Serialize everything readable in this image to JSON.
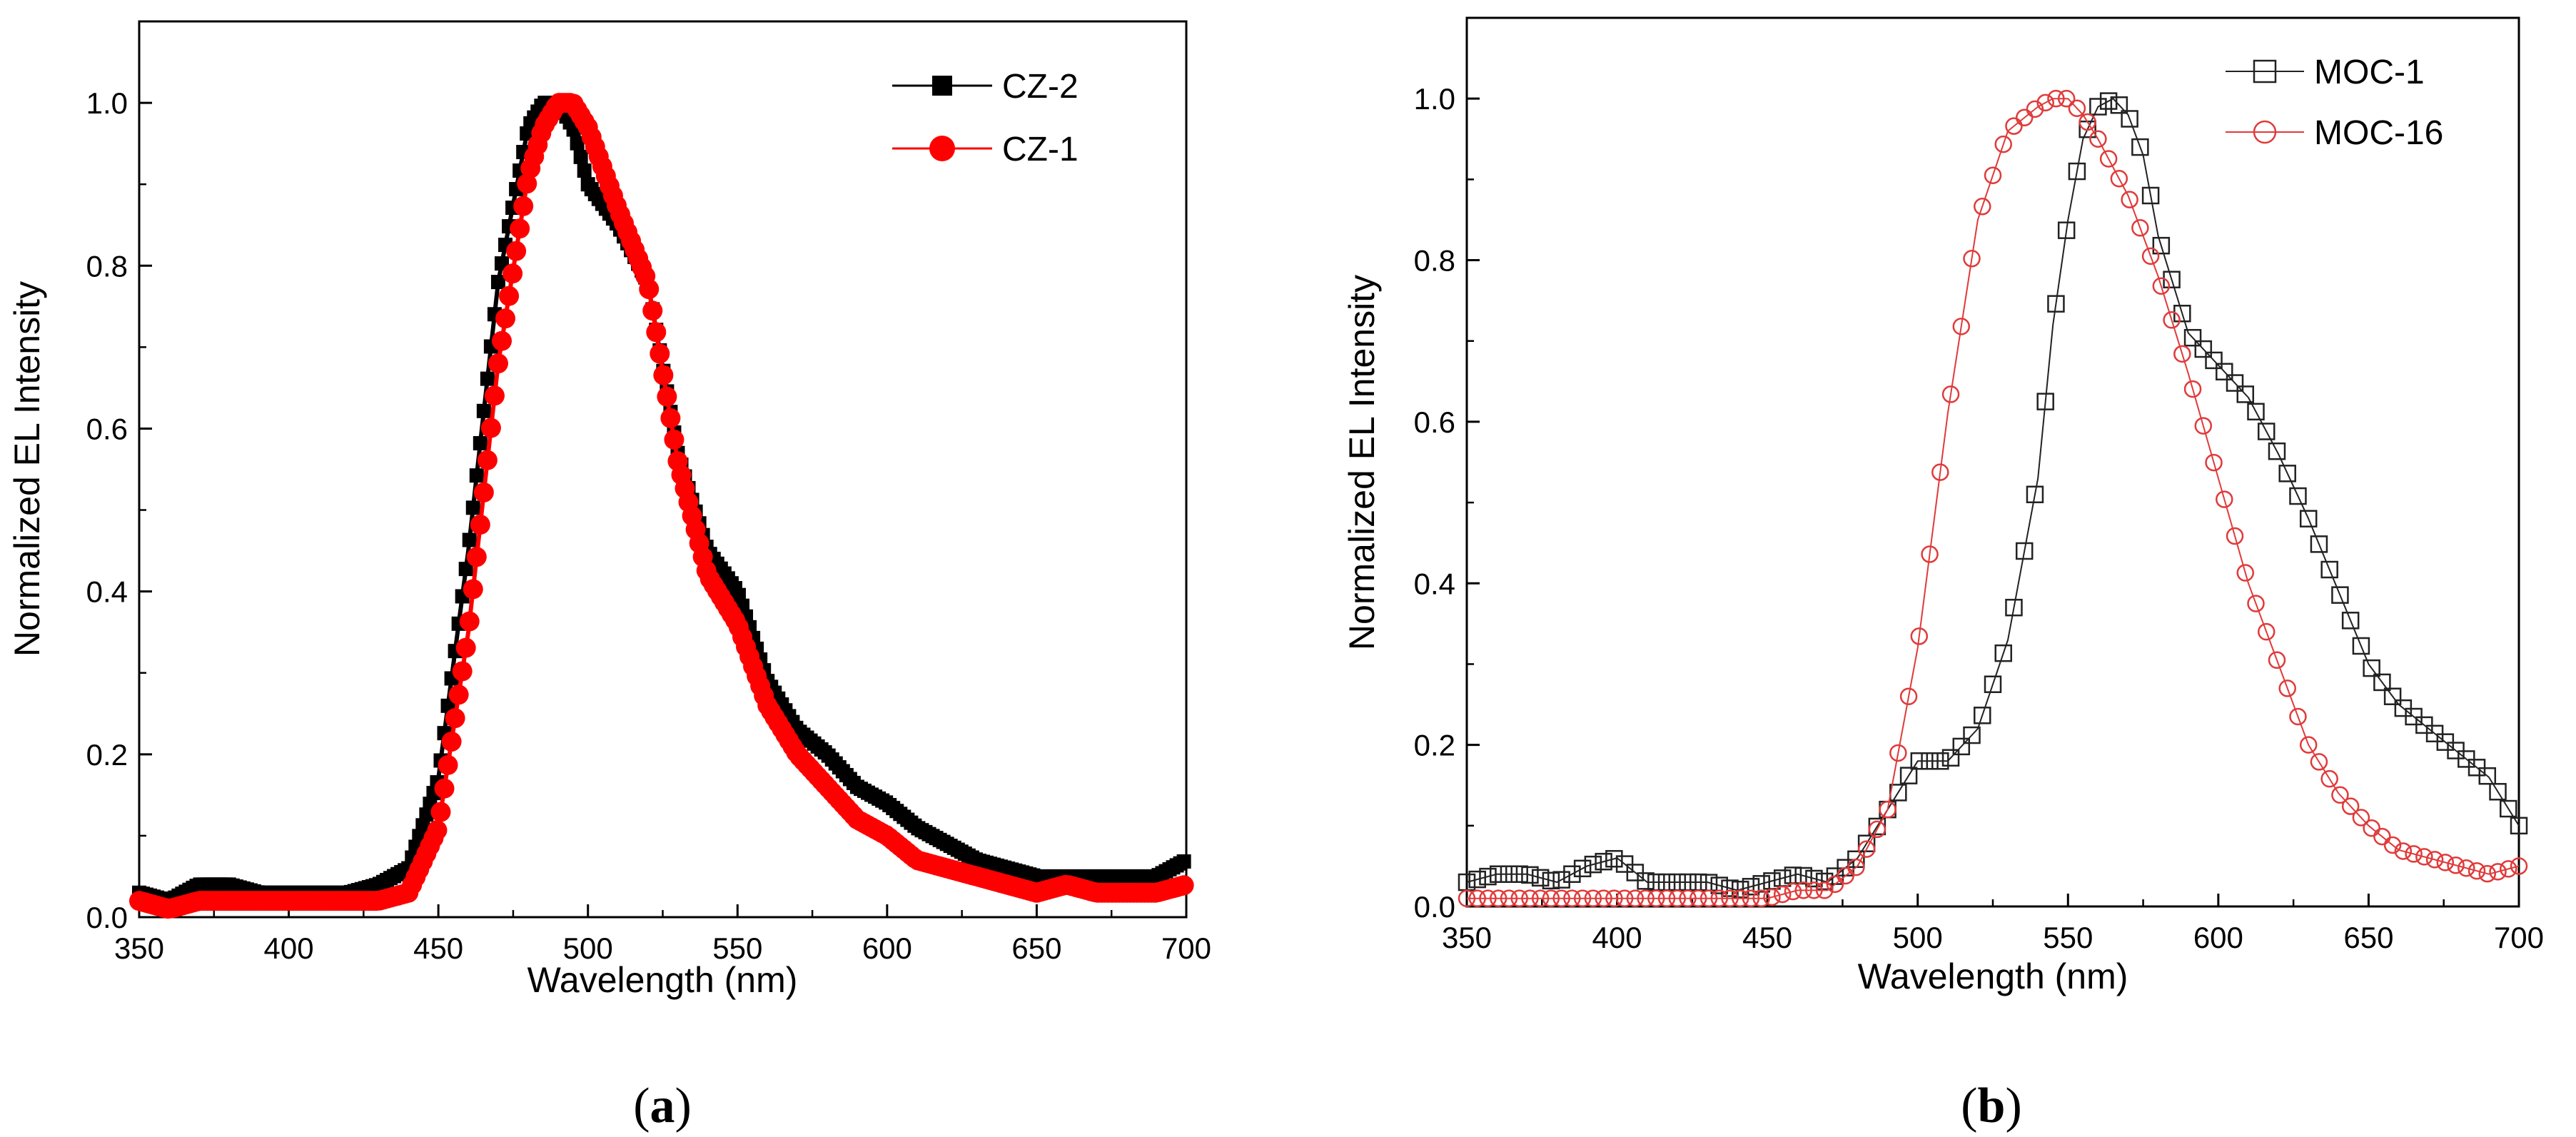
{
  "colors": {
    "black": "#000000",
    "red": "#ff0000",
    "open_red": "#e03a3a",
    "open_black": "#222222"
  },
  "chart_data": [
    {
      "type": "line",
      "panel_label": {
        "open": "(",
        "letter": "a",
        "close": ")"
      },
      "title": "",
      "xlabel": "Wavelength (nm)",
      "ylabel": "Normalized EL Intensity",
      "xlim": [
        350,
        700
      ],
      "ylim": [
        0.0,
        1.1
      ],
      "xticks": [
        350,
        400,
        450,
        500,
        550,
        600,
        650,
        700
      ],
      "yticks": [
        0.0,
        0.2,
        0.4,
        0.6,
        0.8,
        1.0
      ],
      "xtick_labels": [
        "350",
        "400",
        "450",
        "500",
        "550",
        "600",
        "650",
        "700"
      ],
      "ytick_labels": [
        "0.0",
        "0.2",
        "0.4",
        "0.6",
        "0.8",
        "1.0"
      ],
      "legend_position": "top-right",
      "grid": false,
      "series": [
        {
          "name": "CZ-2",
          "color": "#000000",
          "marker": "filled-square",
          "x": [
            350,
            360,
            370,
            380,
            390,
            400,
            410,
            420,
            430,
            440,
            450,
            460,
            470,
            480,
            485,
            490,
            495,
            500,
            510,
            520,
            530,
            540,
            550,
            560,
            570,
            580,
            590,
            600,
            610,
            620,
            630,
            640,
            650,
            660,
            670,
            680,
            690,
            700
          ],
          "values": [
            0.03,
            0.02,
            0.04,
            0.04,
            0.03,
            0.03,
            0.03,
            0.03,
            0.04,
            0.06,
            0.17,
            0.45,
            0.78,
            0.97,
            1.0,
            1.0,
            0.97,
            0.9,
            0.85,
            0.78,
            0.57,
            0.45,
            0.4,
            0.29,
            0.23,
            0.2,
            0.16,
            0.14,
            0.11,
            0.09,
            0.07,
            0.06,
            0.05,
            0.05,
            0.05,
            0.05,
            0.05,
            0.07
          ]
        },
        {
          "name": "CZ-1",
          "color": "#ff0000",
          "marker": "filled-circle",
          "x": [
            350,
            360,
            370,
            380,
            390,
            400,
            410,
            420,
            430,
            440,
            450,
            460,
            470,
            480,
            485,
            490,
            495,
            500,
            510,
            520,
            530,
            540,
            550,
            560,
            570,
            580,
            590,
            600,
            610,
            620,
            630,
            640,
            650,
            660,
            670,
            680,
            690,
            700
          ],
          "values": [
            0.02,
            0.01,
            0.02,
            0.02,
            0.02,
            0.02,
            0.02,
            0.02,
            0.02,
            0.03,
            0.11,
            0.35,
            0.68,
            0.91,
            0.97,
            1.0,
            1.0,
            0.97,
            0.87,
            0.78,
            0.56,
            0.42,
            0.36,
            0.26,
            0.2,
            0.16,
            0.12,
            0.1,
            0.07,
            0.06,
            0.05,
            0.04,
            0.03,
            0.04,
            0.03,
            0.03,
            0.03,
            0.04
          ]
        }
      ]
    },
    {
      "type": "line",
      "panel_label": {
        "open": "(",
        "letter": "b",
        "close": ")"
      },
      "title": "",
      "xlabel": "Wavelength (nm)",
      "ylabel": "Normalized EL Intensity",
      "xlim": [
        350,
        700
      ],
      "ylim": [
        0.0,
        1.1
      ],
      "xticks": [
        350,
        400,
        450,
        500,
        550,
        600,
        650,
        700
      ],
      "yticks": [
        0.0,
        0.2,
        0.4,
        0.6,
        0.8,
        1.0
      ],
      "xtick_labels": [
        "350",
        "400",
        "450",
        "500",
        "550",
        "600",
        "650",
        "700"
      ],
      "ytick_labels": [
        "0.0",
        "0.2",
        "0.4",
        "0.6",
        "0.8",
        "1.0"
      ],
      "legend_position": "top-right",
      "grid": false,
      "series": [
        {
          "name": "MOC-1",
          "color": "#222222",
          "marker": "open-square",
          "x": [
            350,
            360,
            370,
            380,
            390,
            400,
            410,
            420,
            430,
            440,
            450,
            460,
            470,
            480,
            490,
            500,
            510,
            520,
            530,
            540,
            545,
            550,
            555,
            560,
            565,
            570,
            575,
            580,
            590,
            600,
            610,
            620,
            630,
            640,
            650,
            660,
            670,
            680,
            690,
            700
          ],
          "values": [
            0.03,
            0.04,
            0.04,
            0.03,
            0.05,
            0.06,
            0.03,
            0.03,
            0.03,
            0.02,
            0.03,
            0.04,
            0.03,
            0.06,
            0.12,
            0.18,
            0.18,
            0.22,
            0.33,
            0.53,
            0.72,
            0.85,
            0.95,
            0.99,
            1.0,
            0.98,
            0.93,
            0.83,
            0.71,
            0.67,
            0.63,
            0.56,
            0.48,
            0.39,
            0.3,
            0.25,
            0.22,
            0.19,
            0.16,
            0.1
          ]
        },
        {
          "name": "MOC-16",
          "color": "#e03a3a",
          "marker": "open-circle",
          "x": [
            350,
            360,
            370,
            380,
            390,
            400,
            410,
            420,
            430,
            440,
            450,
            460,
            470,
            480,
            490,
            500,
            510,
            520,
            530,
            540,
            545,
            550,
            555,
            560,
            570,
            580,
            590,
            600,
            610,
            620,
            630,
            640,
            650,
            660,
            670,
            680,
            690,
            700
          ],
          "values": [
            0.01,
            0.01,
            0.01,
            0.01,
            0.01,
            0.01,
            0.01,
            0.01,
            0.01,
            0.01,
            0.01,
            0.02,
            0.02,
            0.05,
            0.12,
            0.32,
            0.61,
            0.85,
            0.96,
            0.99,
            1.0,
            1.0,
            0.98,
            0.95,
            0.88,
            0.78,
            0.66,
            0.53,
            0.4,
            0.3,
            0.2,
            0.14,
            0.1,
            0.07,
            0.06,
            0.05,
            0.04,
            0.05
          ]
        }
      ]
    }
  ]
}
